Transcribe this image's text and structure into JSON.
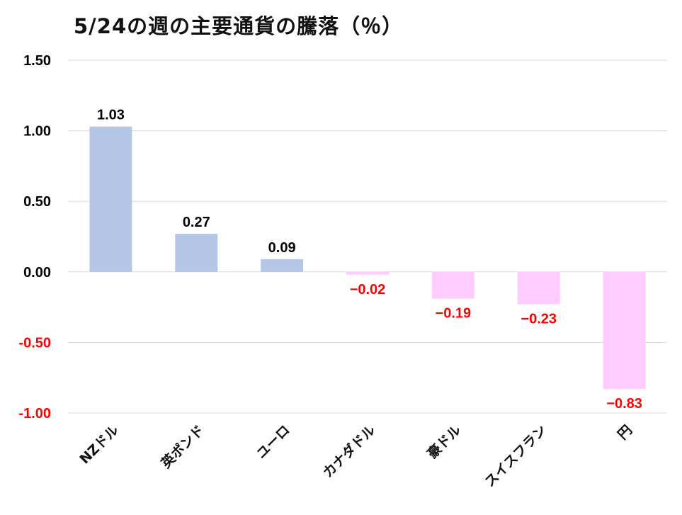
{
  "chart_data": {
    "type": "bar",
    "title": "5/24の週の主要通貨の騰落（％）",
    "categories": [
      "NZドル",
      "英ポンド",
      "ユーロ",
      "カナダドル",
      "豪ドル",
      "スイスフラン",
      "円"
    ],
    "values": [
      1.03,
      0.27,
      0.09,
      -0.02,
      -0.19,
      -0.23,
      -0.83
    ],
    "value_labels": [
      "1.03",
      "0.27",
      "0.09",
      "−0.02",
      "−0.19",
      "−0.23",
      "−0.83"
    ],
    "ylim": [
      -1.0,
      1.5
    ],
    "yticks": [
      1.5,
      1.0,
      0.5,
      0.0,
      -0.5,
      -1.0
    ],
    "ytick_labels": [
      "1.50",
      "1.00",
      "0.50",
      "0.00",
      "-0.50",
      "-1.00"
    ],
    "xlabel": "",
    "ylabel": "",
    "grid": true,
    "colors": {
      "positive_bar": "#b4c7e7",
      "negative_bar": "#ffccff",
      "positive_text": "#000000",
      "negative_text": "#ff0000",
      "grid": "#d9d9d9"
    }
  }
}
